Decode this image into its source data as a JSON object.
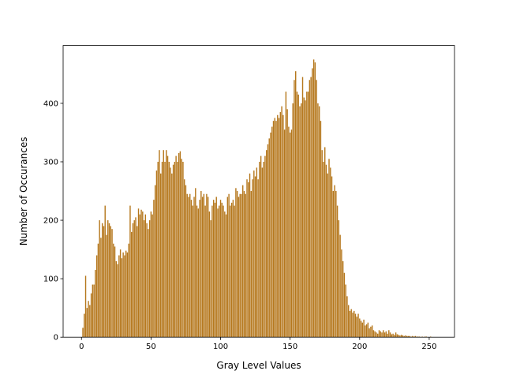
{
  "chart_data": {
    "type": "bar",
    "color": "#b5771c",
    "x_label": "Gray Level Values",
    "y_label": "Number of Occurances",
    "x": [
      0,
      1,
      2,
      3,
      4,
      5,
      6,
      7,
      8,
      9,
      10,
      11,
      12,
      13,
      14,
      15,
      16,
      17,
      18,
      19,
      20,
      21,
      22,
      23,
      24,
      25,
      26,
      27,
      28,
      29,
      30,
      31,
      32,
      33,
      34,
      35,
      36,
      37,
      38,
      39,
      40,
      41,
      42,
      43,
      44,
      45,
      46,
      47,
      48,
      49,
      50,
      51,
      52,
      53,
      54,
      55,
      56,
      57,
      58,
      59,
      60,
      61,
      62,
      63,
      64,
      65,
      66,
      67,
      68,
      69,
      70,
      71,
      72,
      73,
      74,
      75,
      76,
      77,
      78,
      79,
      80,
      81,
      82,
      83,
      84,
      85,
      86,
      87,
      88,
      89,
      90,
      91,
      92,
      93,
      94,
      95,
      96,
      97,
      98,
      99,
      100,
      101,
      102,
      103,
      104,
      105,
      106,
      107,
      108,
      109,
      110,
      111,
      112,
      113,
      114,
      115,
      116,
      117,
      118,
      119,
      120,
      121,
      122,
      123,
      124,
      125,
      126,
      127,
      128,
      129,
      130,
      131,
      132,
      133,
      134,
      135,
      136,
      137,
      138,
      139,
      140,
      141,
      142,
      143,
      144,
      145,
      146,
      147,
      148,
      149,
      150,
      151,
      152,
      153,
      154,
      155,
      156,
      157,
      158,
      159,
      160,
      161,
      162,
      163,
      164,
      165,
      166,
      167,
      168,
      169,
      170,
      171,
      172,
      173,
      174,
      175,
      176,
      177,
      178,
      179,
      180,
      181,
      182,
      183,
      184,
      185,
      186,
      187,
      188,
      189,
      190,
      191,
      192,
      193,
      194,
      195,
      196,
      197,
      198,
      199,
      200,
      201,
      202,
      203,
      204,
      205,
      206,
      207,
      208,
      209,
      210,
      211,
      212,
      213,
      214,
      215,
      216,
      217,
      218,
      219,
      220,
      221,
      222,
      223,
      224,
      225,
      226,
      227,
      228,
      229,
      230,
      231,
      232,
      233,
      234,
      235,
      236,
      237,
      238,
      239,
      240,
      241,
      242,
      243,
      244,
      245,
      246,
      247,
      248,
      249,
      250,
      251,
      252,
      253,
      254,
      255
    ],
    "values": [
      0,
      16,
      40,
      105,
      50,
      62,
      55,
      75,
      90,
      90,
      115,
      140,
      160,
      200,
      170,
      195,
      190,
      225,
      175,
      200,
      195,
      190,
      185,
      160,
      155,
      130,
      125,
      140,
      150,
      135,
      145,
      140,
      148,
      145,
      160,
      225,
      180,
      195,
      200,
      205,
      190,
      220,
      210,
      218,
      215,
      200,
      210,
      195,
      185,
      200,
      215,
      210,
      235,
      260,
      285,
      300,
      320,
      280,
      300,
      320,
      300,
      320,
      310,
      300,
      290,
      280,
      295,
      300,
      310,
      300,
      315,
      318,
      305,
      300,
      270,
      260,
      245,
      240,
      245,
      235,
      225,
      240,
      255,
      225,
      220,
      235,
      250,
      240,
      245,
      225,
      245,
      240,
      215,
      200,
      225,
      235,
      230,
      240,
      220,
      225,
      235,
      230,
      225,
      215,
      210,
      240,
      245,
      225,
      230,
      235,
      225,
      255,
      250,
      240,
      245,
      245,
      260,
      250,
      245,
      270,
      265,
      280,
      250,
      270,
      285,
      275,
      290,
      270,
      300,
      310,
      290,
      300,
      310,
      320,
      330,
      340,
      350,
      360,
      370,
      375,
      370,
      380,
      375,
      385,
      395,
      380,
      355,
      420,
      390,
      360,
      350,
      355,
      400,
      440,
      455,
      420,
      415,
      395,
      400,
      445,
      410,
      405,
      420,
      420,
      440,
      445,
      460,
      475,
      470,
      440,
      400,
      395,
      370,
      320,
      300,
      325,
      295,
      280,
      305,
      290,
      275,
      250,
      260,
      250,
      225,
      200,
      175,
      150,
      130,
      110,
      90,
      70,
      55,
      45,
      48,
      42,
      45,
      40,
      35,
      40,
      32,
      28,
      25,
      30,
      20,
      22,
      25,
      15,
      18,
      20,
      12,
      10,
      8,
      6,
      12,
      10,
      8,
      12,
      8,
      10,
      6,
      12,
      8,
      5,
      6,
      4,
      8,
      5,
      4,
      3,
      4,
      3,
      2,
      3,
      2,
      2,
      2,
      1,
      2,
      1,
      2,
      1,
      1,
      1,
      0,
      1,
      0,
      1,
      1,
      0,
      0,
      1,
      0,
      0,
      0,
      0
    ],
    "xlim": [
      -13.19,
      268.19
    ],
    "ylim": [
      0,
      499
    ],
    "xticks": [
      0,
      50,
      100,
      150,
      200,
      250
    ],
    "yticks": [
      0,
      100,
      200,
      300,
      400
    ]
  }
}
